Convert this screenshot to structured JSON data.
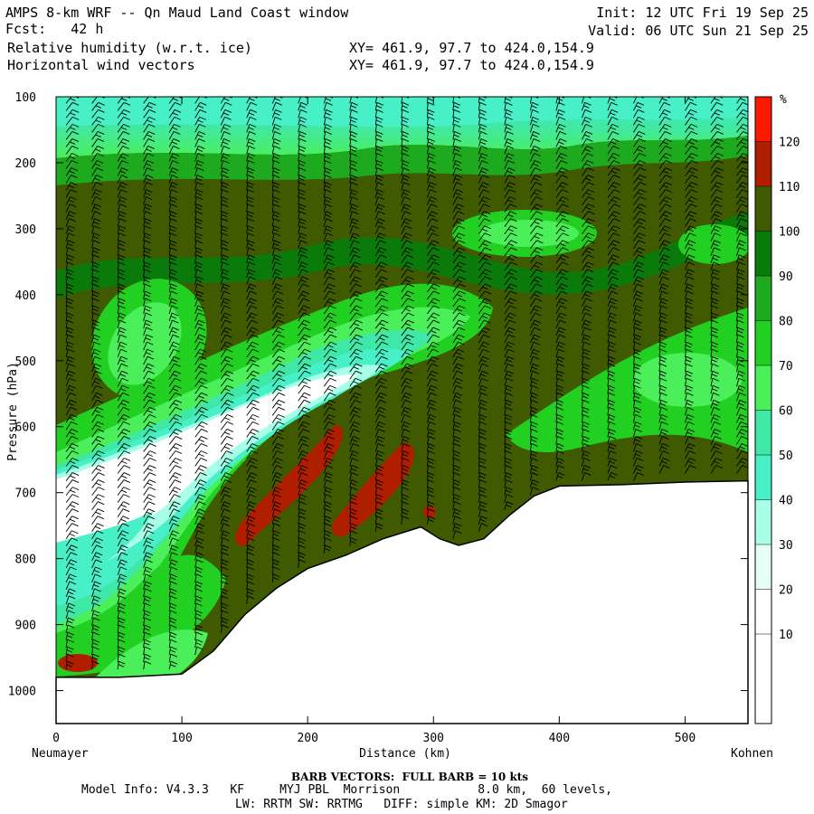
{
  "header": {
    "title": "AMPS 8-km WRF -- Qn Maud Land Coast window",
    "fcst": "Fcst:   42 h",
    "field1": "Relative humidity (w.r.t. ice)",
    "field2": "Horizontal wind vectors",
    "xy1": "XY= 461.9, 97.7 to 424.0,154.9",
    "xy2": "XY= 461.9, 97.7 to 424.0,154.9",
    "init": "Init: 12 UTC Fri 19 Sep 25",
    "valid": "Valid: 06 UTC Sun 21 Sep 25"
  },
  "axes": {
    "ylabel": "Pressure (hPa)",
    "xlabel": "Distance (km)",
    "left_place": "Neumayer",
    "right_place": "Kohnen",
    "y_ticks": [
      "100",
      "200",
      "300",
      "400",
      "500",
      "600",
      "700",
      "800",
      "900",
      "1000"
    ],
    "x_ticks": [
      "0",
      "100",
      "200",
      "300",
      "400",
      "500"
    ],
    "colorbar_unit": "%",
    "colorbar_labels": [
      "120",
      "110",
      "100",
      "90",
      "80",
      "70",
      "60",
      "50",
      "40",
      "30",
      "20",
      "10"
    ]
  },
  "footer": {
    "barb": "BARB VECTORS:  FULL BARB = 10 kts",
    "model": "Model Info: V4.3.3   KF     MYJ PBL  Morrison           8.0 km,  60 levels,",
    "physics": "LW: RRTM SW: RRTMG   DIFF: simple KM: 2D Smagor"
  },
  "colors": {
    "rh_levels": [
      "#ffffff",
      "#ffffff",
      "#ffffff",
      "#e6fff6",
      "#a8ffe8",
      "#48f0c8",
      "#40e8a8",
      "#4aef5a",
      "#22d022",
      "#1eaa1e",
      "#0a7a0a",
      "#3f5a00",
      "#b01e00",
      "#ff1800"
    ],
    "barb": "#000000",
    "terrain": "#ffffff"
  },
  "chart_data": {
    "type": "heatmap",
    "title": "Relative humidity (w.r.t. ice)",
    "xlabel": "Distance (km)",
    "ylabel": "Pressure (hPa)",
    "xlim": [
      0,
      550
    ],
    "ylim": [
      1050,
      100
    ],
    "color_levels": [
      10,
      20,
      30,
      40,
      50,
      60,
      70,
      80,
      90,
      100,
      110,
      120
    ],
    "colorbar_unit": "%",
    "terrain_surface": {
      "x": [
        0,
        50,
        100,
        125,
        150,
        175,
        200,
        230,
        260,
        290,
        305,
        320,
        340,
        360,
        380,
        400,
        450,
        500,
        550
      ],
      "p": [
        980,
        980,
        975,
        940,
        885,
        845,
        815,
        795,
        770,
        752,
        770,
        780,
        770,
        735,
        705,
        690,
        688,
        684,
        682
      ]
    },
    "features": [
      {
        "label": "dry core (RH < 30%)",
        "x_range": [
          0,
          220
        ],
        "p_range": [
          530,
          740
        ]
      },
      {
        "label": "supersaturation (RH > 110%)",
        "x_range": [
          145,
          290
        ],
        "p_range": [
          600,
          770
        ]
      },
      {
        "label": "dry layer (RH 40-60%)",
        "x_range": [
          0,
          550
        ],
        "p_range": [
          100,
          180
        ]
      },
      {
        "label": "moist layer (RH 100-110%)",
        "x_range": [
          0,
          550
        ],
        "p_range": [
          200,
          300
        ]
      }
    ]
  }
}
